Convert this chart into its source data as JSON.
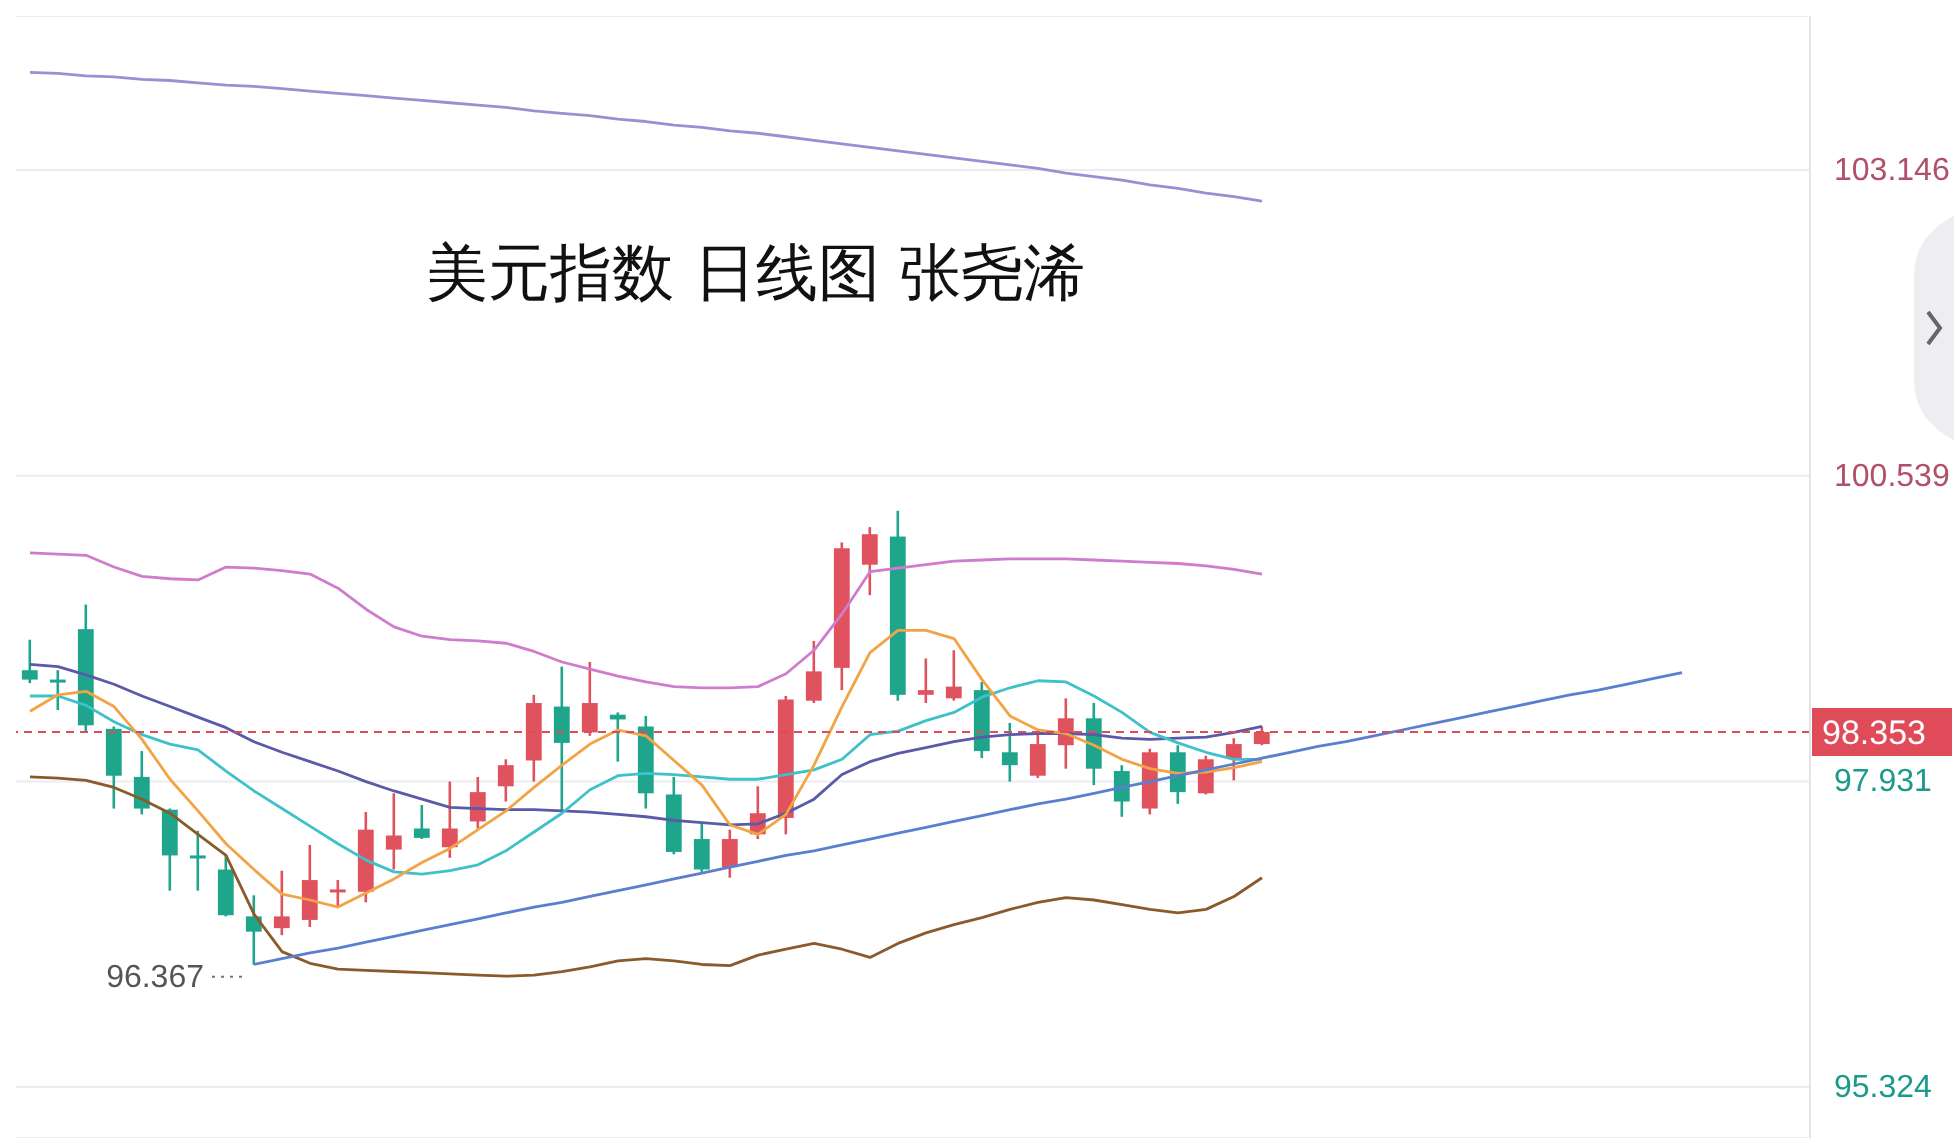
{
  "chart_data": {
    "type": "candlestick",
    "title": "美元指数 日线图 张尧浠",
    "categories": [
      null,
      null,
      null,
      null,
      null,
      null,
      null,
      null,
      null,
      null,
      null,
      null,
      null,
      null,
      null,
      null,
      null,
      null,
      null,
      null,
      null,
      null,
      null,
      null,
      null,
      null,
      null,
      null,
      null,
      null,
      null,
      null,
      null,
      null,
      null,
      null,
      null,
      null,
      null,
      null,
      null,
      null,
      null,
      null,
      null,
      null,
      null,
      null,
      null,
      null,
      null,
      null,
      null,
      null,
      null,
      null,
      null,
      null,
      null,
      null
    ],
    "ohlc": [
      [
        98.88,
        99.14,
        98.77,
        98.8
      ],
      [
        98.8,
        98.88,
        98.54,
        98.79
      ],
      [
        99.23,
        99.44,
        98.36,
        98.41
      ],
      [
        98.38,
        98.4,
        97.7,
        97.98
      ],
      [
        97.97,
        98.19,
        97.65,
        97.7
      ],
      [
        97.69,
        97.7,
        97.0,
        97.3
      ],
      [
        97.3,
        97.51,
        97.0,
        97.29
      ],
      [
        97.18,
        97.31,
        96.78,
        96.79
      ],
      [
        96.78,
        96.96,
        96.367,
        96.65
      ],
      [
        96.68,
        97.17,
        96.62,
        96.78
      ],
      [
        96.75,
        97.39,
        96.69,
        97.09
      ],
      [
        97.0,
        97.09,
        96.86,
        97.01
      ],
      [
        96.99,
        97.67,
        96.9,
        97.52
      ],
      [
        97.35,
        97.83,
        97.18,
        97.47
      ],
      [
        97.53,
        97.73,
        97.44,
        97.45
      ],
      [
        97.37,
        97.93,
        97.28,
        97.53
      ],
      [
        97.59,
        97.97,
        97.53,
        97.84
      ],
      [
        97.89,
        98.12,
        97.76,
        98.07
      ],
      [
        98.11,
        98.67,
        97.93,
        98.6
      ],
      [
        98.57,
        98.91,
        97.67,
        98.26
      ],
      [
        98.35,
        98.95,
        98.32,
        98.6
      ],
      [
        98.5,
        98.52,
        98.1,
        98.46
      ],
      [
        98.4,
        98.49,
        97.7,
        97.83
      ],
      [
        97.82,
        97.97,
        97.31,
        97.33
      ],
      [
        97.44,
        97.57,
        97.16,
        97.18
      ],
      [
        97.2,
        97.52,
        97.11,
        97.44
      ],
      [
        97.48,
        97.89,
        97.44,
        97.66
      ],
      [
        97.62,
        98.66,
        97.48,
        98.63
      ],
      [
        98.62,
        99.13,
        98.6,
        98.87
      ],
      [
        98.9,
        99.97,
        98.71,
        99.92
      ],
      [
        99.78,
        100.1,
        99.52,
        100.04
      ],
      [
        100.02,
        100.24,
        98.62,
        98.67
      ],
      [
        98.67,
        98.98,
        98.6,
        98.71
      ],
      [
        98.64,
        99.05,
        98.62,
        98.74
      ],
      [
        98.71,
        98.78,
        98.13,
        98.19
      ],
      [
        98.18,
        98.43,
        97.93,
        98.07
      ],
      [
        97.98,
        98.35,
        97.96,
        98.25
      ],
      [
        98.24,
        98.64,
        98.04,
        98.47
      ],
      [
        98.47,
        98.6,
        97.9,
        98.04
      ],
      [
        98.02,
        98.07,
        97.63,
        97.76
      ],
      [
        97.7,
        98.21,
        97.65,
        98.18
      ],
      [
        98.18,
        98.24,
        97.74,
        97.84
      ],
      [
        97.83,
        98.15,
        97.82,
        98.12
      ],
      [
        98.13,
        98.3,
        97.94,
        98.25
      ],
      [
        98.25,
        98.4,
        98.24,
        98.353
      ],
      null,
      null,
      null,
      null,
      null,
      null,
      null,
      null,
      null,
      null,
      null,
      null,
      null,
      null,
      null
    ],
    "series": [
      {
        "type": "line",
        "color": "#9b8fd4",
        "values": [
          103.98,
          103.97,
          103.95,
          103.94,
          103.92,
          103.91,
          103.89,
          103.87,
          103.86,
          103.84,
          103.82,
          103.8,
          103.78,
          103.76,
          103.74,
          103.72,
          103.7,
          103.68,
          103.65,
          103.63,
          103.61,
          103.58,
          103.56,
          103.53,
          103.51,
          103.48,
          103.46,
          103.43,
          103.4,
          103.37,
          103.34,
          103.31,
          103.28,
          103.25,
          103.22,
          103.19,
          103.16,
          103.12,
          103.09,
          103.06,
          103.02,
          102.99,
          102.95,
          102.92,
          102.88,
          null,
          null,
          null,
          null,
          null,
          null,
          null,
          null,
          null,
          null,
          null,
          null,
          null,
          null,
          null
        ]
      },
      {
        "type": "line",
        "color": "#d07ccc",
        "values": [
          99.88,
          99.87,
          99.86,
          99.76,
          99.68,
          99.66,
          99.65,
          99.76,
          99.75,
          99.73,
          99.7,
          99.58,
          99.4,
          99.25,
          99.17,
          99.14,
          99.13,
          99.11,
          99.04,
          98.95,
          98.89,
          98.83,
          98.78,
          98.74,
          98.73,
          98.73,
          98.74,
          98.85,
          99.05,
          99.36,
          99.72,
          99.75,
          99.78,
          99.81,
          99.82,
          99.83,
          99.83,
          99.83,
          99.82,
          99.81,
          99.8,
          99.79,
          99.77,
          99.74,
          99.7,
          null,
          null,
          null,
          null,
          null,
          null,
          null,
          null,
          null,
          null,
          null,
          null,
          null,
          null,
          null
        ]
      },
      {
        "type": "line",
        "color": "#8b5a2b",
        "values": [
          97.97,
          97.96,
          97.94,
          97.88,
          97.78,
          97.66,
          97.48,
          97.3,
          96.8,
          96.48,
          96.38,
          96.33,
          96.32,
          96.31,
          96.3,
          96.29,
          96.28,
          96.27,
          96.28,
          96.31,
          96.35,
          96.4,
          96.42,
          96.4,
          96.37,
          96.36,
          96.45,
          96.5,
          96.55,
          96.5,
          96.43,
          96.55,
          96.64,
          96.71,
          96.77,
          96.84,
          96.9,
          96.94,
          96.92,
          96.88,
          96.84,
          96.81,
          96.84,
          96.95,
          97.11,
          null,
          null,
          null,
          null,
          null,
          null,
          null,
          null,
          null,
          null,
          null,
          null,
          null,
          null,
          null
        ]
      },
      {
        "type": "line",
        "color": "#5a5aa8",
        "values": [
          98.93,
          98.91,
          98.84,
          98.76,
          98.66,
          98.57,
          98.48,
          98.39,
          98.27,
          98.18,
          98.1,
          98.02,
          97.93,
          97.85,
          97.78,
          97.71,
          97.7,
          97.69,
          97.69,
          97.68,
          97.67,
          97.65,
          97.63,
          97.6,
          97.58,
          97.56,
          97.57,
          97.66,
          97.78,
          97.99,
          98.1,
          98.17,
          98.22,
          98.27,
          98.31,
          98.33,
          98.34,
          98.34,
          98.33,
          98.3,
          98.29,
          98.3,
          98.31,
          98.35,
          98.4,
          null,
          null,
          null,
          null,
          null,
          null,
          null,
          null,
          null,
          null,
          null,
          null,
          null,
          null,
          null
        ]
      },
      {
        "type": "line",
        "color": "#3ec1c9",
        "values": [
          98.66,
          98.66,
          98.58,
          98.44,
          98.33,
          98.25,
          98.2,
          98.02,
          97.85,
          97.7,
          97.55,
          97.4,
          97.26,
          97.16,
          97.14,
          97.17,
          97.22,
          97.34,
          97.5,
          97.66,
          97.86,
          97.98,
          98.0,
          97.99,
          97.97,
          97.95,
          97.95,
          97.99,
          98.03,
          98.12,
          98.33,
          98.36,
          98.45,
          98.52,
          98.65,
          98.73,
          98.79,
          98.78,
          98.66,
          98.52,
          98.35,
          98.26,
          98.18,
          98.12,
          98.12,
          null,
          null,
          null,
          null,
          null,
          null,
          null,
          null,
          null,
          null,
          null,
          null,
          null,
          null,
          null
        ]
      },
      {
        "type": "line",
        "color": "#f2a445",
        "values": [
          98.53,
          98.67,
          98.7,
          98.57,
          98.29,
          97.95,
          97.68,
          97.4,
          97.18,
          96.97,
          96.92,
          96.86,
          96.98,
          97.1,
          97.24,
          97.36,
          97.52,
          97.68,
          97.88,
          98.07,
          98.25,
          98.37,
          98.32,
          98.11,
          97.9,
          97.56,
          97.48,
          97.65,
          98.07,
          98.57,
          99.03,
          99.22,
          99.22,
          99.15,
          98.8,
          98.49,
          98.37,
          98.34,
          98.24,
          98.12,
          98.04,
          98.0,
          98.01,
          98.05,
          98.1,
          null,
          null,
          null,
          null,
          null,
          null,
          null,
          null,
          null,
          null,
          null,
          null,
          null,
          null,
          null
        ]
      },
      {
        "type": "line",
        "color": "#5b7fcf",
        "values": [
          null,
          null,
          null,
          null,
          null,
          null,
          null,
          null,
          96.37,
          96.42,
          96.47,
          96.51,
          96.56,
          96.61,
          96.66,
          96.71,
          96.76,
          96.81,
          96.86,
          96.9,
          96.95,
          97.0,
          97.05,
          97.1,
          97.15,
          97.2,
          97.25,
          97.3,
          97.34,
          97.39,
          97.44,
          97.49,
          97.54,
          97.59,
          97.64,
          97.69,
          97.74,
          97.78,
          97.83,
          97.88,
          97.93,
          97.98,
          98.03,
          98.08,
          98.13,
          98.18,
          98.23,
          98.27,
          98.32,
          98.37,
          98.42,
          98.47,
          98.52,
          98.57,
          98.62,
          98.67,
          98.71,
          98.76,
          98.81,
          98.86
        ]
      }
    ],
    "ylim": [
      94.89,
      104.46
    ],
    "yticks": [
      95.324,
      97.931,
      100.539,
      103.146
    ],
    "grid": "y",
    "tick_labels": "y",
    "marker": "none",
    "line_style": "solid",
    "ref_lines": [
      {
        "axis": "y",
        "value": 98.353,
        "label": "98.353",
        "color": "#e04b5a",
        "line_style": "dashed"
      }
    ],
    "annotations": [
      "96.367"
    ]
  }
}
